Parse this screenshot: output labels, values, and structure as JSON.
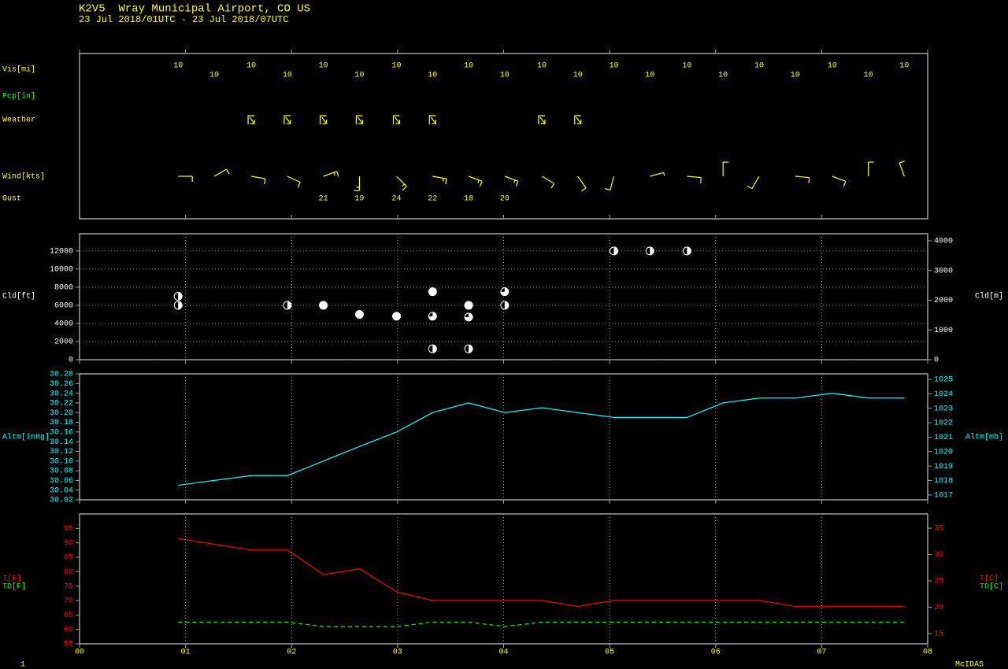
{
  "header": {
    "station": "K2V5  Wray Municipal Airport, CO US",
    "period": "23 Jul 2018/01UTC - 23 Jul 2018/07UTC"
  },
  "footer": {
    "page": "1",
    "software": "McIDAS"
  },
  "chart_data": [
    {
      "type": "station",
      "labels": {
        "vis": "Vis[mi]",
        "pcp": "Pcp[in]",
        "weather": "Weather",
        "wind": "Wind[kts]",
        "gust": "Gust"
      },
      "x": [
        0.93,
        1.27,
        1.62,
        1.96,
        2.3,
        2.64,
        2.99,
        3.33,
        3.67,
        4.01,
        4.36,
        4.7,
        5.04,
        5.38,
        5.73,
        6.07,
        6.41,
        6.75,
        7.1,
        7.44,
        7.78
      ],
      "visibility": [
        10,
        10,
        10,
        10,
        10,
        10,
        10,
        10,
        10,
        10,
        10,
        10,
        10,
        10,
        10,
        10,
        10,
        10,
        10,
        10,
        10
      ],
      "weather_x": [
        1.62,
        1.96,
        2.3,
        2.64,
        2.99,
        3.33,
        4.36,
        4.7
      ],
      "wind_direction": [
        90,
        60,
        100,
        115,
        70,
        180,
        135,
        100,
        110,
        110,
        120,
        145,
        195,
        75,
        95,
        0,
        210,
        95,
        110,
        0,
        340
      ],
      "wind_speed": [
        10,
        10,
        10,
        10,
        15,
        15,
        15,
        15,
        15,
        15,
        10,
        10,
        10,
        5,
        10,
        10,
        10,
        10,
        10,
        10,
        10
      ],
      "gust": [
        null,
        null,
        null,
        null,
        21,
        19,
        24,
        22,
        18,
        20,
        null,
        null,
        null,
        null,
        null,
        null,
        null,
        null,
        null,
        null,
        null
      ]
    },
    {
      "type": "cloud",
      "ylabel": "Cld[ft]",
      "y2label": "Cld[m]",
      "axis_color": "#ffffff",
      "grid": "both",
      "ylim": [
        0,
        13900
      ],
      "yticks": [
        0,
        2000,
        4000,
        6000,
        8000,
        10000,
        12000
      ],
      "y2lim": [
        0,
        4237
      ],
      "y2ticks": [
        0,
        1000,
        2000,
        3000,
        4000
      ],
      "x": [
        0.93,
        0.93,
        1.96,
        2.3,
        2.64,
        2.99,
        3.33,
        3.33,
        3.33,
        3.67,
        3.67,
        3.67,
        4.01,
        4.01,
        5.04,
        5.38,
        5.73
      ],
      "heights": [
        7000,
        6000,
        6000,
        6000,
        5000,
        4800,
        7500,
        4800,
        1200,
        6000,
        4700,
        1200,
        7500,
        6000,
        12000,
        12000,
        12000
      ],
      "coverage": [
        0.5,
        0.5,
        0.5,
        1,
        1,
        1,
        1,
        0.75,
        0.5,
        1,
        0.75,
        0.5,
        0.75,
        0.5,
        0.5,
        0.5,
        0.5
      ]
    },
    {
      "type": "line",
      "y2label": "Altm[mb]",
      "axis_color": "#00ffff",
      "grid": "x",
      "ylim": [
        30.02,
        30.28
      ],
      "yticks": [
        30.02,
        30.04,
        30.06,
        30.08,
        {
          "value": 30.1,
          "label": "30.10"
        },
        30.12,
        30.14,
        30.16,
        30.18,
        {
          "value": 30.2,
          "label": "30.20"
        },
        30.22,
        30.24,
        30.26,
        30.28
      ],
      "y2lim": [
        1016.67,
        1025.38
      ],
      "y2ticks": [
        1017,
        1018,
        1019,
        1020,
        1021,
        1022,
        1023,
        1024,
        1025
      ],
      "x": [
        0.93,
        1.27,
        1.62,
        1.96,
        2.3,
        2.64,
        2.99,
        3.33,
        3.67,
        4.01,
        4.36,
        4.7,
        5.04,
        5.38,
        5.73,
        6.07,
        6.41,
        6.75,
        7.1,
        7.44,
        7.78
      ],
      "series": [
        {
          "name": "Altm[inHg]",
          "color": "#00ffff",
          "values": [
            30.05,
            30.06,
            30.07,
            30.07,
            30.1,
            30.13,
            30.16,
            30.2,
            30.22,
            30.2,
            30.21,
            30.2,
            30.19,
            30.19,
            30.19,
            30.22,
            30.23,
            30.23,
            30.24,
            30.23,
            30.23
          ]
        }
      ]
    },
    {
      "type": "line",
      "axis_color": "#ff0000",
      "grid": "x",
      "ylim": [
        55,
        100
      ],
      "yticks": [
        55,
        60,
        65,
        70,
        75,
        80,
        85,
        90,
        95
      ],
      "y2lim": [
        13.06,
        37.7
      ],
      "y2ticks": [
        15,
        20,
        25,
        30,
        35
      ],
      "y2labels": [
        "T[C]",
        "TD[C]"
      ],
      "xlim": [
        0,
        8
      ],
      "xticks": [
        {
          "value": 0,
          "label": "00"
        },
        {
          "value": 1,
          "label": "01"
        },
        {
          "value": 2,
          "label": "02"
        },
        {
          "value": 3,
          "label": "03"
        },
        {
          "value": 4,
          "label": "04"
        },
        {
          "value": 5,
          "label": "05"
        },
        {
          "value": 6,
          "label": "06"
        },
        {
          "value": 7,
          "label": "07"
        },
        {
          "value": 8,
          "label": "08"
        }
      ],
      "x": [
        0.93,
        1.27,
        1.62,
        1.96,
        2.3,
        2.64,
        2.99,
        3.33,
        3.67,
        4.01,
        4.36,
        4.7,
        5.04,
        5.38,
        5.73,
        6.07,
        6.41,
        6.75,
        7.1,
        7.44,
        7.78
      ],
      "series": [
        {
          "name": "T[F]",
          "color": "#ff0000",
          "values": [
            91.5,
            89.5,
            87.5,
            87.5,
            79,
            81,
            73,
            70,
            70,
            70,
            70,
            68,
            70,
            70,
            70,
            70,
            70,
            68,
            68,
            68,
            68
          ]
        },
        {
          "name": "TD[F]",
          "color": "#00ff00",
          "dashed": true,
          "values": [
            62.5,
            62.5,
            62.5,
            62.5,
            61,
            61,
            61,
            62.5,
            62.5,
            61,
            62.5,
            62.5,
            62.5,
            62.5,
            62.5,
            62.5,
            62.5,
            62.5,
            62.5,
            62.5,
            62.5
          ]
        }
      ]
    }
  ]
}
